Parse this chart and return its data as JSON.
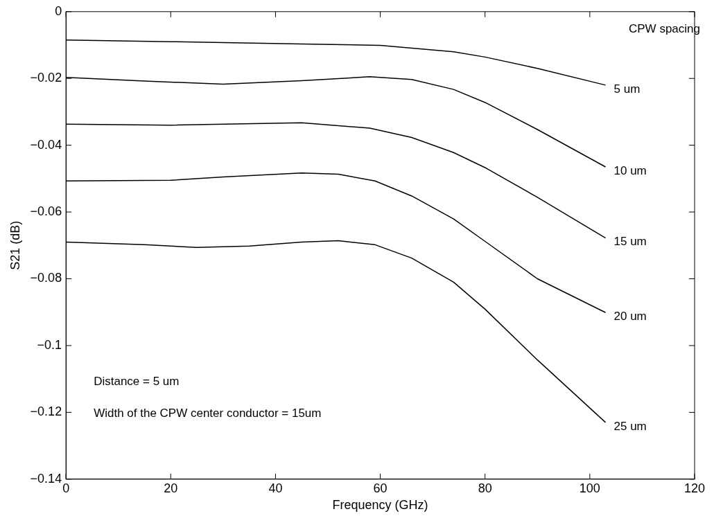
{
  "chart_data": {
    "type": "line",
    "xlabel": "Frequency (GHz)",
    "ylabel": "S21 (dB)",
    "xlim": [
      0,
      120
    ],
    "ylim": [
      -0.14,
      0
    ],
    "xticks": [
      0,
      20,
      40,
      60,
      80,
      100,
      120
    ],
    "yticks": [
      {
        "value": -0.14,
        "label": "−0.14"
      },
      {
        "value": -0.12,
        "label": "−0.12"
      },
      {
        "value": -0.1,
        "label": "−0.1"
      },
      {
        "value": -0.08,
        "label": "−0.08"
      },
      {
        "value": -0.06,
        "label": "−0.06"
      },
      {
        "value": -0.04,
        "label": "−0.04"
      },
      {
        "value": -0.02,
        "label": "−0.02"
      },
      0
    ],
    "grid": false,
    "legend": false,
    "marker": "none",
    "line_style": "solid",
    "annotations": [
      "CPW spacing",
      "Distance = 5 um",
      "Width of the CPW center conductor = 15um"
    ],
    "series": [
      {
        "name": "5 um",
        "color": "#000000",
        "x": [
          0,
          20,
          45,
          60,
          74,
          80,
          90,
          103
        ],
        "values": [
          -0.0085,
          -0.009,
          -0.0097,
          -0.0101,
          -0.012,
          -0.0136,
          -0.017,
          -0.022
        ]
      },
      {
        "name": "10 um",
        "color": "#000000",
        "x": [
          0,
          15,
          30,
          45,
          58,
          66,
          74,
          80,
          90,
          103
        ],
        "values": [
          -0.0197,
          -0.0208,
          -0.0217,
          -0.0207,
          -0.0195,
          -0.0203,
          -0.0233,
          -0.0272,
          -0.0353,
          -0.0465
        ]
      },
      {
        "name": "15 um",
        "color": "#000000",
        "x": [
          0,
          20,
          45,
          58,
          66,
          74,
          80,
          90,
          103
        ],
        "values": [
          -0.0337,
          -0.034,
          -0.0333,
          -0.0349,
          -0.0377,
          -0.0422,
          -0.0467,
          -0.0556,
          -0.0678
        ]
      },
      {
        "name": "20 um",
        "color": "#000000",
        "x": [
          0,
          20,
          30,
          45,
          52,
          59,
          66,
          74,
          80,
          90,
          103
        ],
        "values": [
          -0.0507,
          -0.0505,
          -0.0495,
          -0.0483,
          -0.0487,
          -0.0507,
          -0.0552,
          -0.0621,
          -0.0688,
          -0.08,
          -0.0901
        ]
      },
      {
        "name": "25 um",
        "color": "#000000",
        "x": [
          0,
          15,
          25,
          35,
          45,
          52,
          59,
          66,
          74,
          80,
          90,
          103
        ],
        "values": [
          -0.069,
          -0.0698,
          -0.0706,
          -0.0702,
          -0.069,
          -0.0686,
          -0.0698,
          -0.0738,
          -0.081,
          -0.0891,
          -0.1043,
          -0.123
        ]
      }
    ]
  }
}
